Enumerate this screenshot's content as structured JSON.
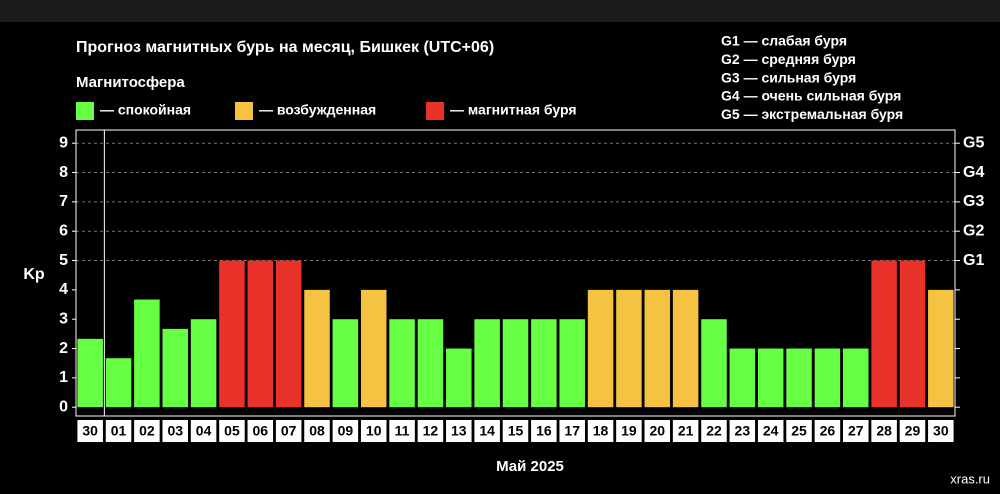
{
  "chart_data": {
    "type": "bar",
    "title": "Прогноз магнитных бурь на месяц, Бишкек (UTC+06)",
    "legend_title": "Магнитосфера",
    "legend": [
      {
        "label": "— спокойная",
        "color": "#66ff44"
      },
      {
        "label": "— возбужденная",
        "color": "#f5c242"
      },
      {
        "label": "— магнитная буря",
        "color": "#e8322a"
      }
    ],
    "notes": [
      "G1 — слабая буря",
      "G2 — средняя буря",
      "G3 — сильная буря",
      "G4 — очень сильная буря",
      "G5 — экстремальная буря"
    ],
    "y_label": "Kp",
    "x_label": "Май 2025",
    "watermark": "xras.ru",
    "categories": [
      "30",
      "01",
      "02",
      "03",
      "04",
      "05",
      "06",
      "07",
      "08",
      "09",
      "10",
      "11",
      "12",
      "13",
      "14",
      "15",
      "16",
      "17",
      "18",
      "19",
      "20",
      "21",
      "22",
      "23",
      "24",
      "25",
      "26",
      "27",
      "28",
      "29",
      "30"
    ],
    "values": [
      2.33,
      1.67,
      3.67,
      2.67,
      3,
      5,
      5,
      5,
      4,
      3,
      4,
      3,
      3,
      2,
      3,
      3,
      3,
      3,
      4,
      4,
      4,
      4,
      3,
      2,
      2,
      2,
      2,
      2,
      5,
      5,
      4
    ],
    "colors": [
      "#66ff44",
      "#66ff44",
      "#66ff44",
      "#66ff44",
      "#66ff44",
      "#e8322a",
      "#e8322a",
      "#e8322a",
      "#f5c242",
      "#66ff44",
      "#f5c242",
      "#66ff44",
      "#66ff44",
      "#66ff44",
      "#66ff44",
      "#66ff44",
      "#66ff44",
      "#66ff44",
      "#f5c242",
      "#f5c242",
      "#f5c242",
      "#f5c242",
      "#66ff44",
      "#66ff44",
      "#66ff44",
      "#66ff44",
      "#66ff44",
      "#66ff44",
      "#e8322a",
      "#e8322a",
      "#f5c242"
    ],
    "ylim": [
      -0.3,
      9.45
    ],
    "yticks": [
      0,
      1,
      2,
      3,
      4,
      5,
      6,
      7,
      8,
      9
    ],
    "y2lim": [
      -0.3,
      9.45
    ],
    "y2ticks": [
      {
        "value": 5,
        "label": "G1"
      },
      {
        "value": 6,
        "label": "G2"
      },
      {
        "value": 7,
        "label": "G3"
      },
      {
        "value": 8,
        "label": "G4"
      },
      {
        "value": 9,
        "label": "G5"
      }
    ],
    "grid": true
  }
}
